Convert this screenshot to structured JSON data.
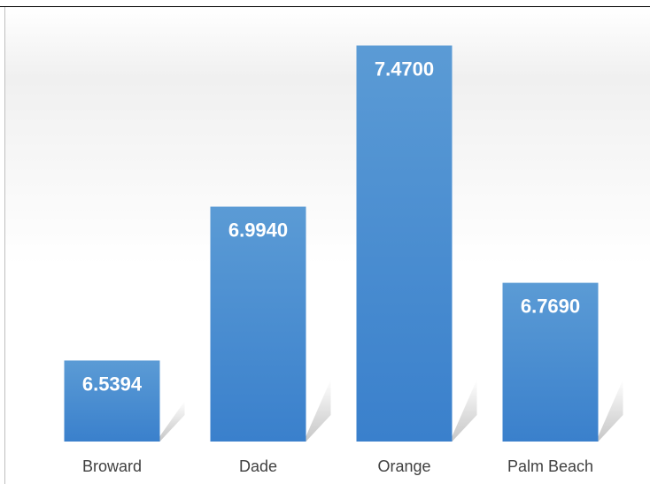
{
  "chart_data": {
    "type": "bar",
    "categories": [
      "Broward",
      "Dade",
      "Orange",
      "Palm Beach"
    ],
    "values": [
      6.5394,
      6.994,
      7.47,
      6.769
    ],
    "value_labels": [
      "6.5394",
      "6.9940",
      "7.4700",
      "6.7690"
    ],
    "title": "",
    "xlabel": "",
    "ylabel": "",
    "ylim": [
      6.3,
      7.5
    ],
    "grid": false,
    "legend": "none",
    "colors": {
      "bar_top": "#5b9bd5",
      "bar_bottom": "#3a80cc",
      "label_text": "#ffffff",
      "category_text": "#404040"
    }
  }
}
